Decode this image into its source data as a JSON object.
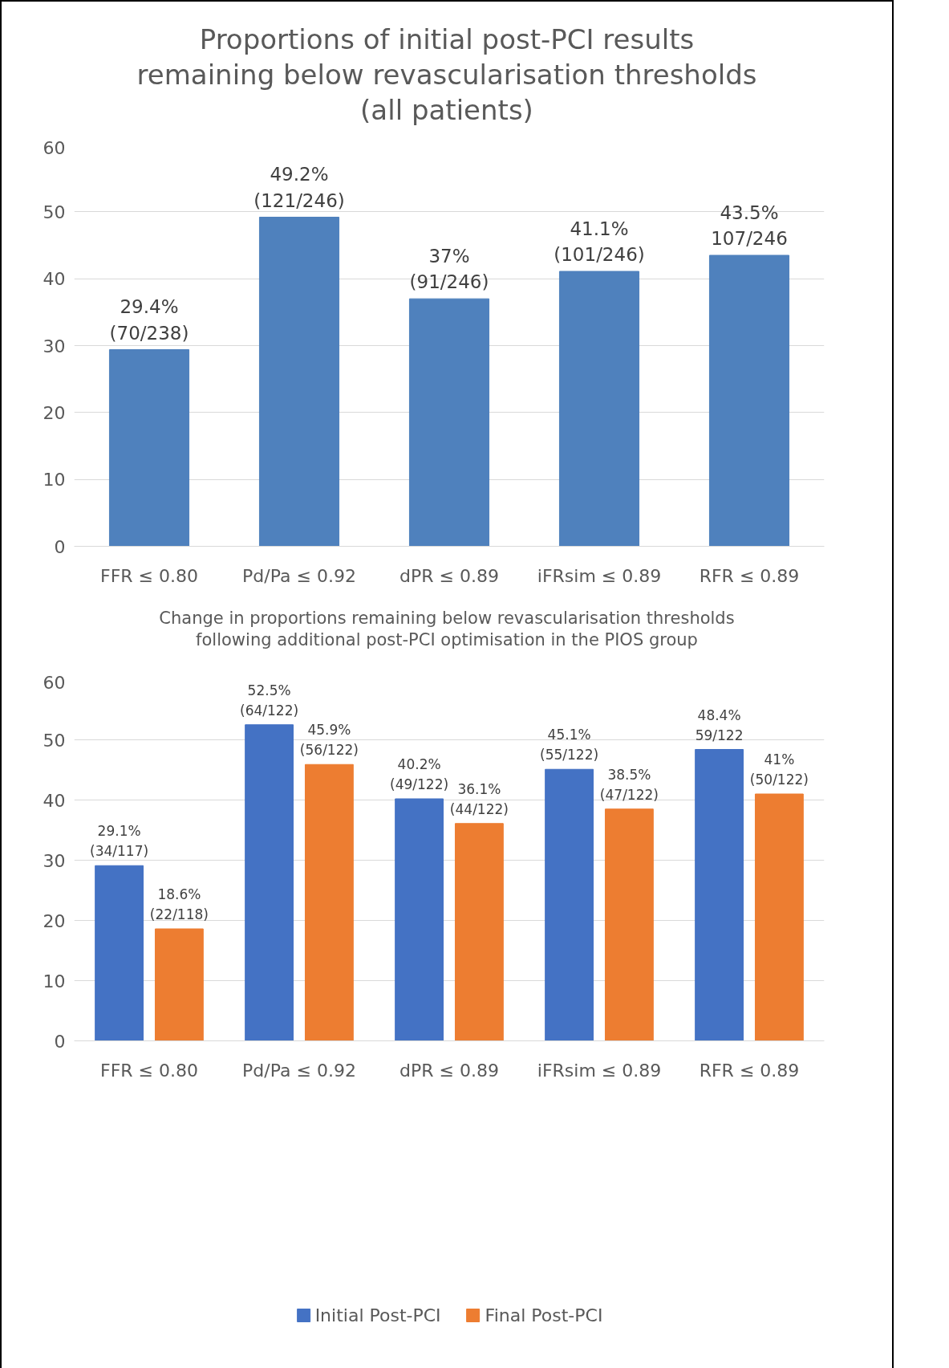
{
  "chart_data": [
    {
      "type": "bar",
      "title": "Proportions of initial post-PCI results\nremaining below revascularisation thresholds\n(all patients)",
      "categories": [
        "FFR ≤ 0.80",
        "Pd/Pa ≤ 0.92",
        "dPR ≤ 0.89",
        "iFRsim ≤ 0.89",
        "RFR ≤ 0.89"
      ],
      "series": [
        {
          "color": "#4f81bd",
          "values": [
            29.4,
            49.2,
            37,
            41.1,
            43.5
          ],
          "value_labels": [
            "29.4%\n(70/238)",
            "49.2%\n(121/246)",
            "37%\n(91/246)",
            "41.1%\n(101/246)",
            "43.5%\n107/246"
          ]
        }
      ],
      "ylim": [
        0,
        60
      ],
      "yticks": [
        0,
        10,
        20,
        30,
        40,
        50,
        60
      ],
      "grid": "y",
      "legend": false
    },
    {
      "type": "bar",
      "title": "Change in proportions remaining below revascularisation thresholds\nfollowing additional post-PCI optimisation in the PIOS group",
      "categories": [
        "FFR ≤ 0.80",
        "Pd/Pa ≤ 0.92",
        "dPR ≤ 0.89",
        "iFRsim ≤ 0.89",
        "RFR ≤ 0.89"
      ],
      "series": [
        {
          "name": "Initial Post-PCI",
          "color": "#4472c4",
          "values": [
            29.1,
            52.5,
            40.2,
            45.1,
            48.4
          ],
          "value_labels": [
            "29.1%\n(34/117)",
            "52.5%\n(64/122)",
            "40.2%\n(49/122)",
            "45.1%\n(55/122)",
            "48.4%\n59/122"
          ]
        },
        {
          "name": "Final Post-PCI",
          "color": "#ed7d31",
          "values": [
            18.6,
            45.9,
            36.1,
            38.5,
            41
          ],
          "value_labels": [
            "18.6%\n(22/118)",
            "45.9%\n(56/122)",
            "36.1%\n(44/122)",
            "38.5%\n(47/122)",
            "41%\n(50/122)"
          ]
        }
      ],
      "ylim": [
        0,
        60
      ],
      "yticks": [
        0,
        10,
        20,
        30,
        40,
        50,
        60
      ],
      "grid": "y",
      "legend": "bottom"
    }
  ]
}
